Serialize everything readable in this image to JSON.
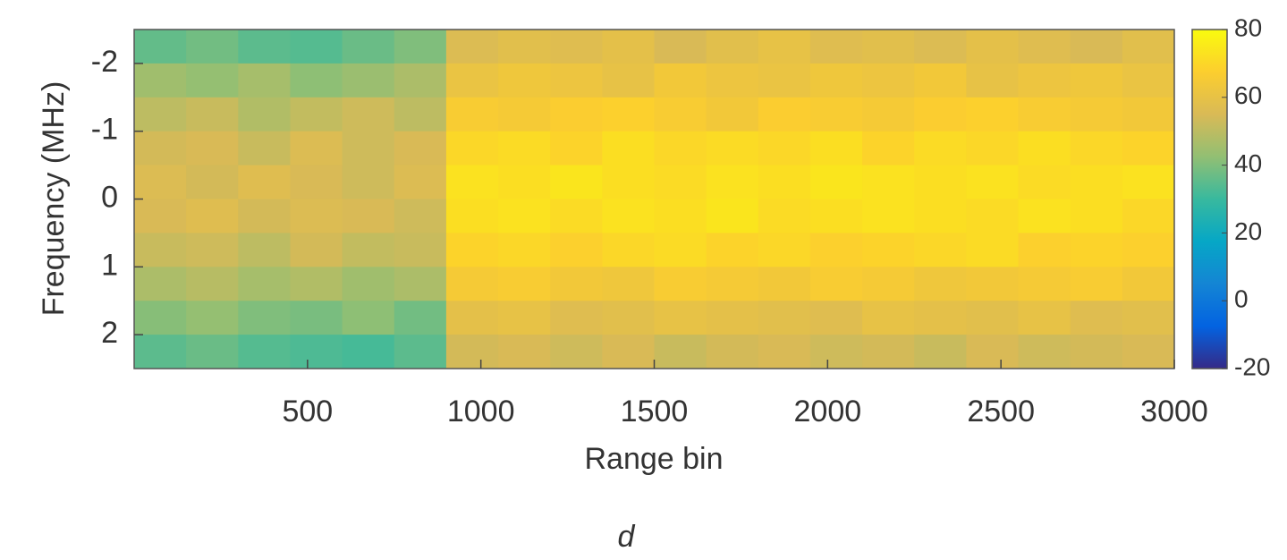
{
  "chart_data": {
    "type": "heatmap",
    "xlabel": "Range bin",
    "ylabel": "Frequency (MHz)",
    "caption": "d",
    "x": [
      75,
      225,
      375,
      525,
      675,
      825,
      975,
      1125,
      1275,
      1425,
      1575,
      1725,
      1875,
      2025,
      2175,
      2325,
      2475,
      2625,
      2775,
      2925
    ],
    "y": [
      -2.25,
      -1.75,
      -1.25,
      -0.75,
      -0.25,
      0.25,
      0.75,
      1.25,
      1.75,
      2.25
    ],
    "z": [
      [
        36,
        38,
        35,
        34,
        37,
        40,
        56,
        58,
        57,
        59,
        55,
        58,
        60,
        57,
        58,
        56,
        59,
        57,
        55,
        58
      ],
      [
        45,
        43,
        46,
        42,
        44,
        47,
        61,
        63,
        62,
        60,
        64,
        62,
        61,
        63,
        62,
        64,
        60,
        62,
        63,
        61
      ],
      [
        50,
        52,
        48,
        51,
        53,
        50,
        66,
        65,
        67,
        68,
        66,
        64,
        67,
        66,
        65,
        67,
        68,
        66,
        65,
        64
      ],
      [
        54,
        55,
        52,
        56,
        53,
        55,
        70,
        71,
        69,
        72,
        70,
        71,
        70,
        72,
        69,
        71,
        70,
        72,
        70,
        69
      ],
      [
        56,
        54,
        57,
        55,
        53,
        56,
        73,
        72,
        74,
        72,
        71,
        73,
        72,
        74,
        73,
        72,
        73,
        71,
        72,
        73
      ],
      [
        55,
        57,
        54,
        56,
        55,
        53,
        72,
        73,
        71,
        73,
        72,
        74,
        71,
        72,
        73,
        72,
        71,
        73,
        72,
        70
      ],
      [
        52,
        53,
        50,
        54,
        51,
        52,
        69,
        70,
        68,
        70,
        71,
        69,
        70,
        68,
        69,
        70,
        71,
        68,
        69,
        68
      ],
      [
        47,
        49,
        46,
        48,
        45,
        47,
        65,
        66,
        64,
        63,
        66,
        65,
        64,
        66,
        65,
        63,
        64,
        65,
        66,
        64
      ],
      [
        41,
        43,
        40,
        39,
        42,
        38,
        59,
        60,
        57,
        58,
        60,
        59,
        58,
        57,
        60,
        59,
        58,
        60,
        57,
        58
      ],
      [
        35,
        37,
        34,
        33,
        32,
        35,
        54,
        55,
        53,
        55,
        52,
        54,
        55,
        53,
        54,
        52,
        55,
        53,
        54,
        55
      ]
    ],
    "xlim": [
      0,
      3000
    ],
    "xticks": [
      500,
      1000,
      1500,
      2000,
      2500,
      3000
    ],
    "ylim": [
      -2.5,
      2.5
    ],
    "yticks": [
      -2,
      -1,
      0,
      1,
      2
    ],
    "y_reversed": true,
    "clim": [
      -20,
      80
    ],
    "cticks": [
      -20,
      0,
      20,
      40,
      60,
      80
    ],
    "colormap": [
      "#352a87",
      "#0363e1",
      "#1485d4",
      "#06a7c6",
      "#38b99e",
      "#92bf73",
      "#d9ba56",
      "#fcce2e",
      "#f9fb0e"
    ],
    "grid": false
  }
}
